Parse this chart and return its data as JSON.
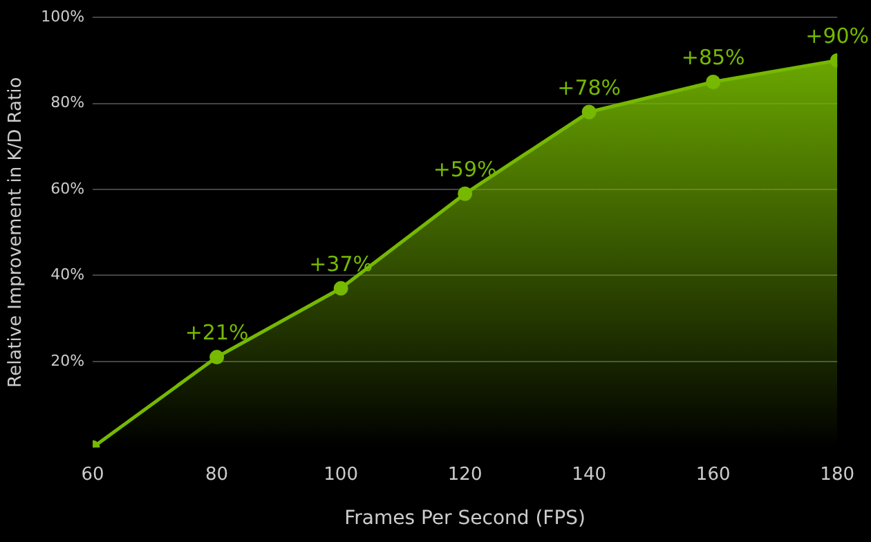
{
  "chart_data": {
    "type": "area",
    "xlabel": "Frames Per Second (FPS)",
    "ylabel": "Relative Improvement in K/D Ratio",
    "x": [
      60,
      80,
      100,
      120,
      140,
      160,
      180
    ],
    "series": [
      {
        "color": "#76b900",
        "values": [
          0,
          21,
          37,
          59,
          78,
          85,
          90
        ],
        "value_labels": [
          null,
          "+21%",
          "+37%",
          "+59%",
          "+78%",
          "+85%",
          "+90%"
        ]
      }
    ],
    "xlim": [
      60,
      180
    ],
    "xticks": [
      60,
      80,
      100,
      120,
      140,
      160,
      180
    ],
    "ylim": [
      0,
      100
    ],
    "yticks": [
      {
        "value": 20,
        "label": "20%"
      },
      {
        "value": 40,
        "label": "40%"
      },
      {
        "value": 60,
        "label": "60%"
      },
      {
        "value": 80,
        "label": "80%"
      },
      {
        "value": 100,
        "label": "100%"
      }
    ],
    "grid": "y",
    "marker": "circle",
    "line_style": "solid",
    "legend": false
  }
}
